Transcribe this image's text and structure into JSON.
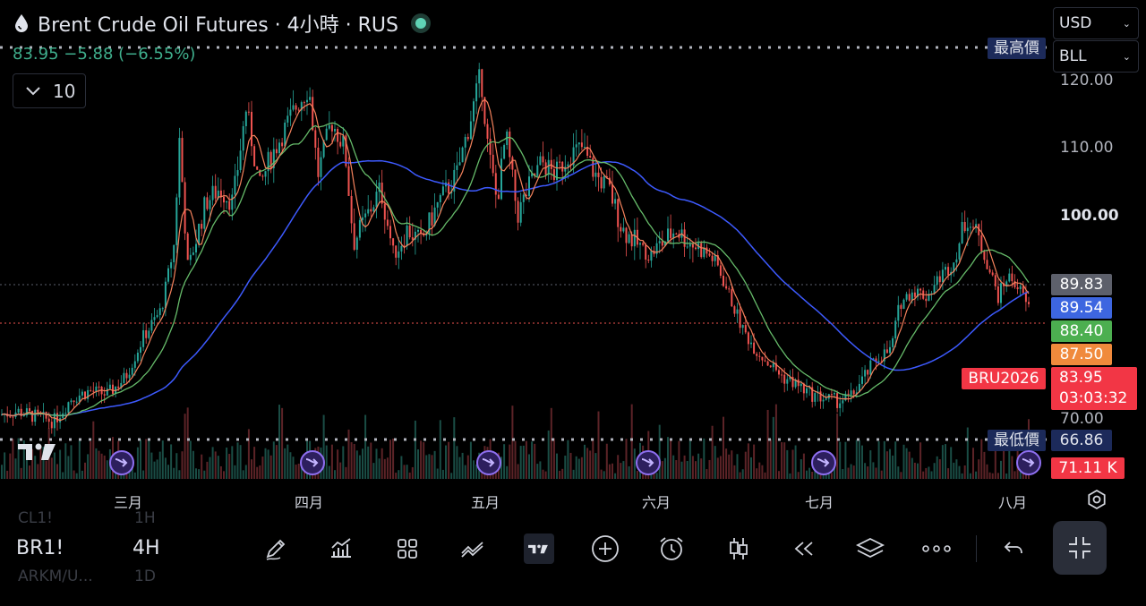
{
  "header": {
    "title": "Brent Crude Oil Futures · 4小時 · RUS",
    "price_change": "83.95 −5.88 (−6.55%)",
    "indicator_count": "10"
  },
  "selectors": {
    "currency": "USD",
    "unit": "BLL"
  },
  "price_axis": {
    "ticks": [
      {
        "label": "120.00",
        "bold": false
      },
      {
        "label": "110.00",
        "bold": false
      },
      {
        "label": "100.00",
        "bold": true
      },
      {
        "label": "70.00",
        "bold": false
      }
    ]
  },
  "price_tags": {
    "ma1": {
      "value": "89.83",
      "color": "#5d606b"
    },
    "ma2": {
      "value": "89.54",
      "color": "#3d66e0"
    },
    "ma3": {
      "value": "88.40",
      "color": "#4caf50"
    },
    "ma4": {
      "value": "87.50",
      "color": "#f08a3c"
    },
    "symbol_tag": "BRU2026",
    "last_price": "83.95",
    "countdown": "03:03:32",
    "high_label": "最高價",
    "low_label": "最低價",
    "low_value": "66.86",
    "volume": "71.11 K",
    "red": "#f23645",
    "navy": "#1c2a5a"
  },
  "time_axis": {
    "months": [
      "三月",
      "四月",
      "五月",
      "六月",
      "七月",
      "八月"
    ]
  },
  "ghost_rows": {
    "row1_symbol": "CL1!",
    "row1_interval": "1H",
    "row2_symbol": "ARKM/U...",
    "row2_interval": "1D"
  },
  "toolbar": {
    "symbol": "BR1!",
    "interval": "4H",
    "tools": [
      "pen-icon",
      "indicators-icon",
      "grid-icon",
      "compare-icon",
      "tradingview-icon",
      "add-icon",
      "alarm-icon",
      "candles-icon",
      "replay-icon",
      "layers-icon",
      "more-icon",
      "undo-icon"
    ]
  },
  "colors": {
    "up": "#26a69a",
    "down": "#ef5350",
    "ma_fast": "#f5825c",
    "ma_mid": "#66bb6a",
    "ma_slow": "#3d5afe"
  },
  "chart_data": {
    "type": "line",
    "title": "Brent Crude Oil Futures · 4小時 · RUS",
    "x": [
      "三月",
      "四月",
      "五月",
      "六月",
      "七月",
      "八月"
    ],
    "ylim": [
      66,
      124
    ],
    "y_ticks": [
      70,
      100,
      110,
      120
    ],
    "price_path": [
      [
        0,
        70.5
      ],
      [
        20,
        71
      ],
      [
        40,
        70.2
      ],
      [
        60,
        69.5
      ],
      [
        80,
        73
      ],
      [
        100,
        74
      ],
      [
        120,
        73.5
      ],
      [
        140,
        76
      ],
      [
        160,
        82
      ],
      [
        180,
        86
      ],
      [
        195,
        96
      ],
      [
        200,
        112
      ],
      [
        210,
        92
      ],
      [
        230,
        102
      ],
      [
        245,
        104
      ],
      [
        260,
        102
      ],
      [
        275,
        116
      ],
      [
        290,
        104
      ],
      [
        300,
        108
      ],
      [
        315,
        112
      ],
      [
        330,
        116
      ],
      [
        345,
        119
      ],
      [
        355,
        106
      ],
      [
        370,
        114
      ],
      [
        385,
        110
      ],
      [
        395,
        96
      ],
      [
        410,
        100
      ],
      [
        425,
        104
      ],
      [
        440,
        94
      ],
      [
        455,
        98
      ],
      [
        470,
        96
      ],
      [
        490,
        102
      ],
      [
        510,
        106
      ],
      [
        525,
        114
      ],
      [
        537,
        121
      ],
      [
        545,
        110
      ],
      [
        555,
        102
      ],
      [
        565,
        112
      ],
      [
        578,
        100
      ],
      [
        590,
        104
      ],
      [
        605,
        108
      ],
      [
        620,
        106
      ],
      [
        635,
        109
      ],
      [
        650,
        110
      ],
      [
        665,
        106
      ],
      [
        680,
        104
      ],
      [
        695,
        98
      ],
      [
        710,
        96
      ],
      [
        725,
        94
      ],
      [
        740,
        96
      ],
      [
        755,
        98
      ],
      [
        770,
        96
      ],
      [
        785,
        95
      ],
      [
        800,
        93
      ],
      [
        815,
        88
      ],
      [
        830,
        83
      ],
      [
        845,
        80
      ],
      [
        860,
        78
      ],
      [
        875,
        76
      ],
      [
        890,
        75
      ],
      [
        905,
        73.5
      ],
      [
        920,
        73
      ],
      [
        935,
        72.5
      ],
      [
        950,
        73
      ],
      [
        965,
        76
      ],
      [
        980,
        79
      ],
      [
        995,
        80
      ],
      [
        1005,
        87
      ],
      [
        1020,
        89
      ],
      [
        1035,
        88
      ],
      [
        1050,
        91
      ],
      [
        1065,
        93
      ],
      [
        1080,
        100
      ],
      [
        1095,
        96
      ],
      [
        1105,
        92
      ],
      [
        1115,
        88
      ],
      [
        1125,
        91
      ],
      [
        1135,
        90
      ],
      [
        1150,
        86
      ]
    ],
    "series": [
      {
        "name": "89.83",
        "last": 89.83
      },
      {
        "name": "89.54",
        "last": 89.54
      },
      {
        "name": "88.40",
        "last": 88.4
      },
      {
        "name": "87.50",
        "last": 87.5
      }
    ],
    "last_price": 83.95,
    "high_line": 124.5,
    "low_line": 66.86,
    "grid": false,
    "legend": "right"
  }
}
